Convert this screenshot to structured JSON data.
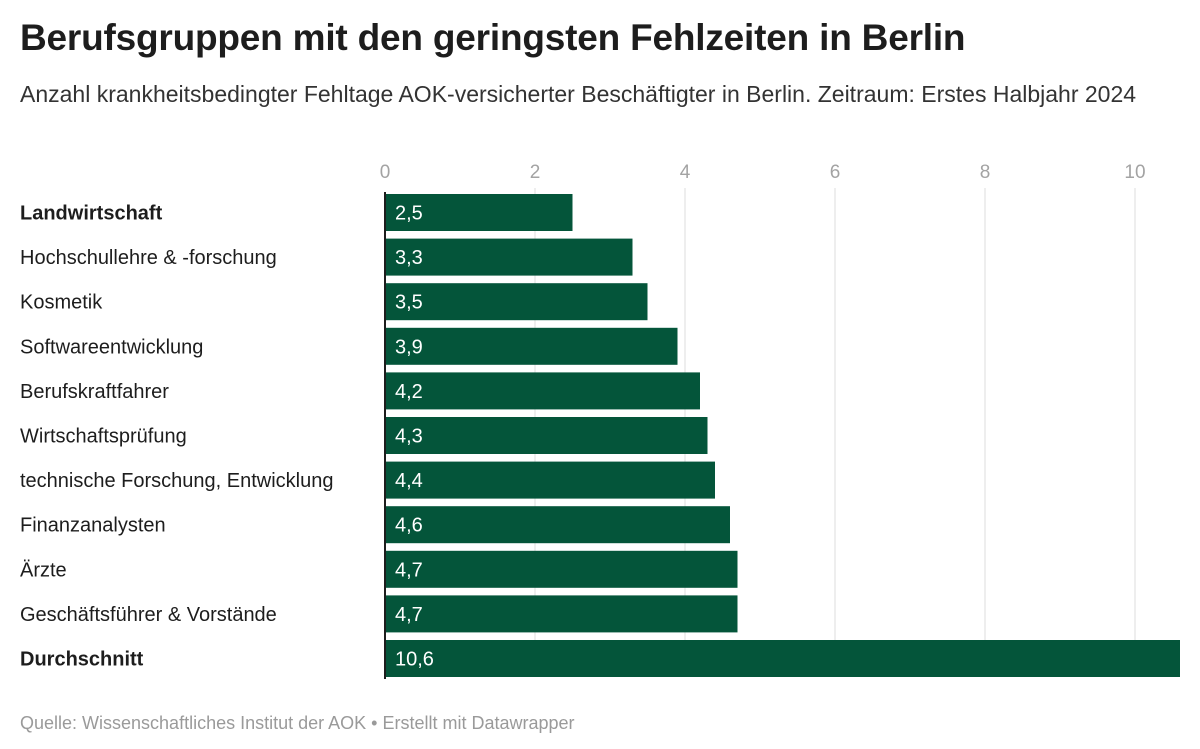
{
  "header": {
    "title": "Berufsgruppen mit den geringsten Fehlzeiten in Berlin",
    "subtitle": "Anzahl krankheitsbedingter Fehltage AOK-versicherter Beschäftigter in Berlin. Zeitraum: Erstes Halbjahr 2024"
  },
  "footer": {
    "text": "Quelle: Wissenschaftliches Institut der AOK • Erstellt mit Datawrapper"
  },
  "chart_data": {
    "type": "bar",
    "orientation": "horizontal",
    "title": "Berufsgruppen mit den geringsten Fehlzeiten in Berlin",
    "subtitle": "Anzahl krankheitsbedingter Fehltage AOK-versicherter Beschäftigter in Berlin. Zeitraum: Erstes Halbjahr 2024",
    "categories": [
      "Landwirtschaft",
      "Hochschullehre & -forschung",
      "Kosmetik",
      "Softwareentwicklung",
      "Berufskraftfahrer",
      "Wirtschaftsprüfung",
      "technische Forschung, Entwicklung",
      "Finanzanalysten",
      "Ärzte",
      "Geschäftsführer & Vorstände",
      "Durchschnitt"
    ],
    "bold_categories": [
      "Landwirtschaft",
      "Durchschnitt"
    ],
    "values": [
      2.5,
      3.3,
      3.5,
      3.9,
      4.2,
      4.3,
      4.4,
      4.6,
      4.7,
      4.7,
      10.6
    ],
    "value_labels": [
      "2,5",
      "3,3",
      "3,5",
      "3,9",
      "4,2",
      "4,3",
      "4,4",
      "4,6",
      "4,7",
      "4,7",
      "10,6"
    ],
    "x_ticks": [
      0,
      2,
      4,
      6,
      8,
      10
    ],
    "x_tick_labels": [
      "0",
      "2",
      "4",
      "6",
      "8",
      "10"
    ],
    "xlim": [
      0,
      10.6
    ],
    "xlabel": "",
    "ylabel": "",
    "grid": true,
    "axis_position": "top",
    "bar_color": "#04553a",
    "grid_color": "#e3e3e3",
    "source": "Quelle: Wissenschaftliches Institut der AOK • Erstellt mit Datawrapper"
  }
}
